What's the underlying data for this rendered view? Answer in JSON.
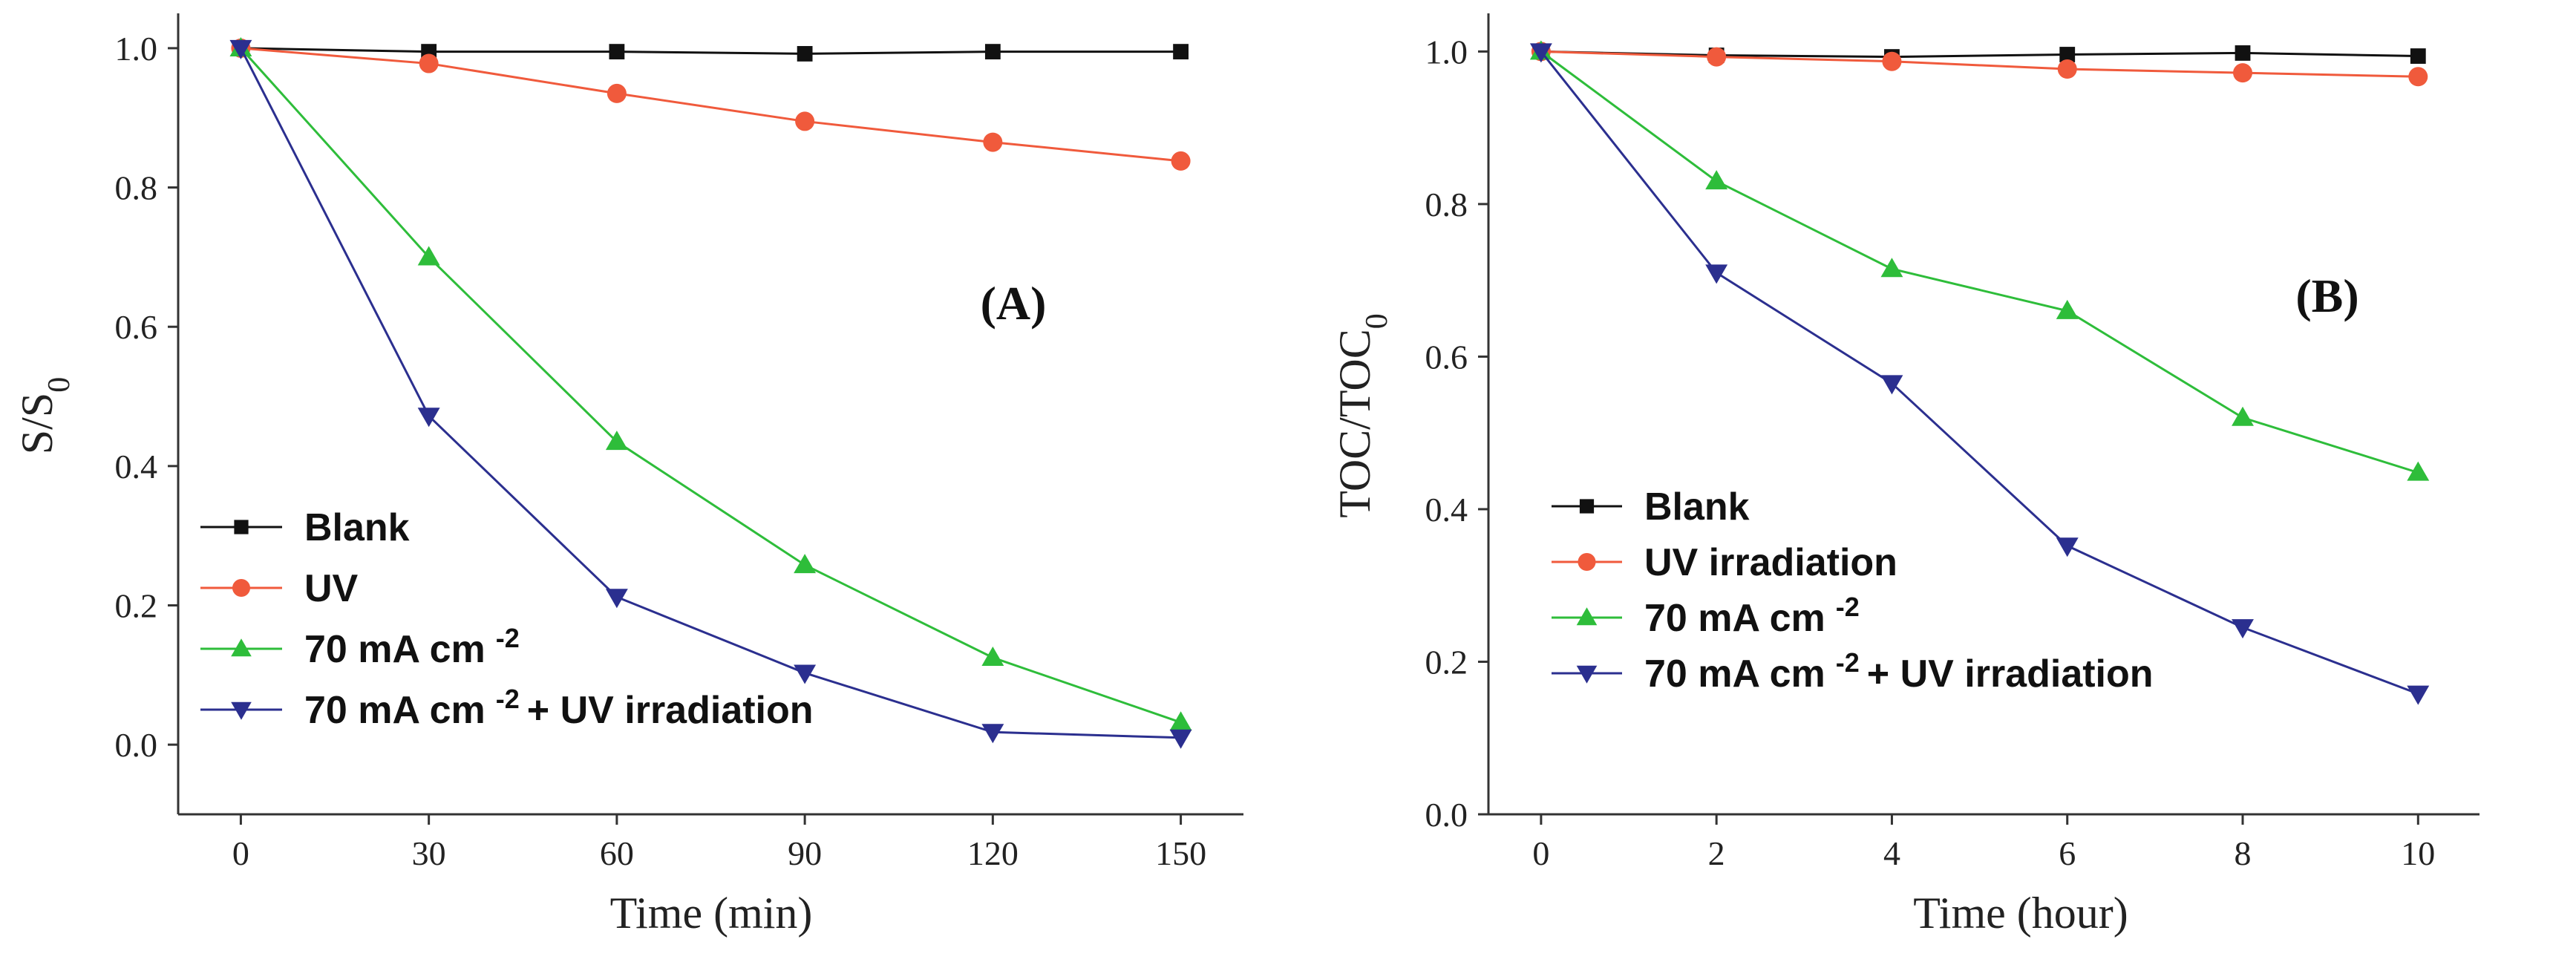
{
  "chart_data": [
    {
      "type": "line",
      "label": "(A)",
      "xlabel": "Time (min)",
      "ylabel": "S/S",
      "ylabel_sub": "0",
      "x": [
        0,
        30,
        60,
        90,
        120,
        150
      ],
      "xlim": [
        -10,
        160
      ],
      "ylim": [
        -0.1,
        1.05
      ],
      "xticks": [
        "0",
        "30",
        "60",
        "90",
        "120",
        "150"
      ],
      "yticks": [
        "0.0",
        "0.2",
        "0.4",
        "0.6",
        "0.8",
        "1.0"
      ],
      "legend_position": "bottom-left",
      "series": [
        {
          "name": "Blank",
          "legend": "Blank",
          "legend_sup": "",
          "legend_suffix": "",
          "color": "#111111",
          "marker": "square",
          "values": [
            1.0,
            0.995,
            0.995,
            0.992,
            0.995,
            0.995
          ]
        },
        {
          "name": "UV",
          "legend": "UV",
          "legend_sup": "",
          "legend_suffix": "",
          "color": "#f05a3c",
          "marker": "circle",
          "values": [
            1.0,
            0.978,
            0.935,
            0.895,
            0.865,
            0.838
          ]
        },
        {
          "name": "70 mA cm -2",
          "legend": "70 mA cm",
          "legend_sup": "-2",
          "legend_suffix": "",
          "color": "#2ebd3a",
          "marker": "triangle-up",
          "values": [
            1.0,
            0.7,
            0.435,
            0.258,
            0.125,
            0.032
          ]
        },
        {
          "name": "70 mA cm -2 + UV irradiation",
          "legend": "70 mA cm",
          "legend_sup": "-2",
          "legend_suffix": "+ UV irradiation",
          "color": "#2b2f8f",
          "marker": "triangle-down",
          "values": [
            1.0,
            0.472,
            0.212,
            0.103,
            0.018,
            0.01
          ]
        }
      ]
    },
    {
      "type": "line",
      "label": "(B)",
      "xlabel": "Time (hour)",
      "ylabel": "TOC/TOC",
      "ylabel_sub": "0",
      "x": [
        0,
        2,
        4,
        6,
        8,
        10
      ],
      "xlim": [
        -0.6,
        10.7
      ],
      "ylim": [
        0.0,
        1.05
      ],
      "xticks": [
        "0",
        "2",
        "4",
        "6",
        "8",
        "10"
      ],
      "yticks": [
        "0.0",
        "0.2",
        "0.4",
        "0.6",
        "0.8",
        "1.0"
      ],
      "legend_position": "bottom-left",
      "series": [
        {
          "name": "Blank",
          "legend": "Blank",
          "legend_sup": "",
          "legend_suffix": "",
          "color": "#111111",
          "marker": "square",
          "values": [
            1.0,
            0.995,
            0.993,
            0.996,
            0.998,
            0.994
          ]
        },
        {
          "name": "UV irradiation",
          "legend": "UV irradiation",
          "legend_sup": "",
          "legend_suffix": "",
          "color": "#f05a3c",
          "marker": "circle",
          "values": [
            1.0,
            0.993,
            0.987,
            0.977,
            0.972,
            0.967
          ]
        },
        {
          "name": "70 mA cm -2",
          "legend": "70 mA cm",
          "legend_sup": "-2",
          "legend_suffix": "",
          "color": "#2ebd3a",
          "marker": "triangle-up",
          "values": [
            1.0,
            0.83,
            0.715,
            0.66,
            0.52,
            0.448
          ]
        },
        {
          "name": "70 mA cm -2 + UV irradiation",
          "legend": "70 mA cm",
          "legend_sup": "-2",
          "legend_suffix": "+ UV irradiation",
          "color": "#2b2f8f",
          "marker": "triangle-down",
          "values": [
            1.0,
            0.71,
            0.565,
            0.352,
            0.245,
            0.158
          ]
        }
      ]
    }
  ]
}
